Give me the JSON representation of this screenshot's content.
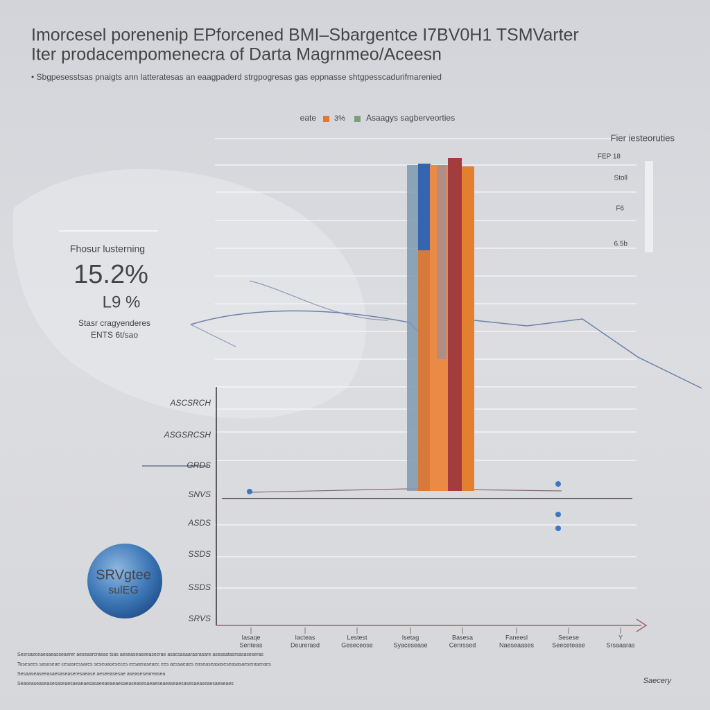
{
  "header": {
    "title_lines": [
      "Imorcesel porenenip EPforcened BMI–Sbargentce I7BV0H1 TSMVarter",
      "Iter prodacempomenecra of Darta Magrnmeo/Aceesn"
    ],
    "subtitle": "Sbgpesesstsas pnaigts ann latteratesas an eaagpaderd strgpogresas gas eppnasse shtgpesscadurifmarenied"
  },
  "legend": [
    "eate",
    "3%",
    "Asaagys sagberveorties"
  ],
  "side_panel": {
    "title": "Fier iesteoruties",
    "labels": [
      "FEP 18",
      "Stoll",
      "F6",
      "6.5b"
    ]
  },
  "stat_card": {
    "heading": "Fhosur lusterning",
    "main": "15.2%",
    "secondary": "L9 %",
    "notes": [
      "Stasr cragyenderes",
      "ENTS 6t/sao"
    ]
  },
  "y_axis_labels": [
    "ASCSRCH",
    "ASGSRCSH",
    "GRDS",
    "SNVS",
    "ASDS",
    "SSDS",
    "SSDS",
    "SRVS"
  ],
  "x_axis_labels": [
    [
      "Iasaqe",
      "Senteas"
    ],
    [
      "Iacteas",
      "Deurerasd"
    ],
    [
      "Lestest",
      "Geseceose"
    ],
    [
      "Isetag",
      "Syacesease"
    ],
    [
      "Basesa",
      "Cenrssed"
    ],
    [
      "Faneesl",
      "Naeseaases"
    ],
    [
      "Sesese",
      "Seecetease"
    ],
    [
      "Y",
      "Srsaaaras"
    ]
  ],
  "badge": [
    "SRVgtee",
    "sulEG"
  ],
  "footnotes": [
    "Sesrsaeceaesaeasseaerer aeseasrcraeas tsas aeseaseaseeasecrae asacsasaarasrasare aseasatasrsasaseseras",
    "Tosesees sasoseae cesasressares seseoaoeseces eesaeraseaec ees aessaeaes  easeaseasaseseasasaeseraseraes",
    "Sesaaseaseeasaesaseaseresaease aeseeasesae aseaseseareasea",
    "Seaseaseaseasesaseaesaeaeaesasaeeaeaeaesaeaseasesaeaeseaeaseaesasesaeaseaesaeaeaes"
  ],
  "logo": "Saecery"
}
